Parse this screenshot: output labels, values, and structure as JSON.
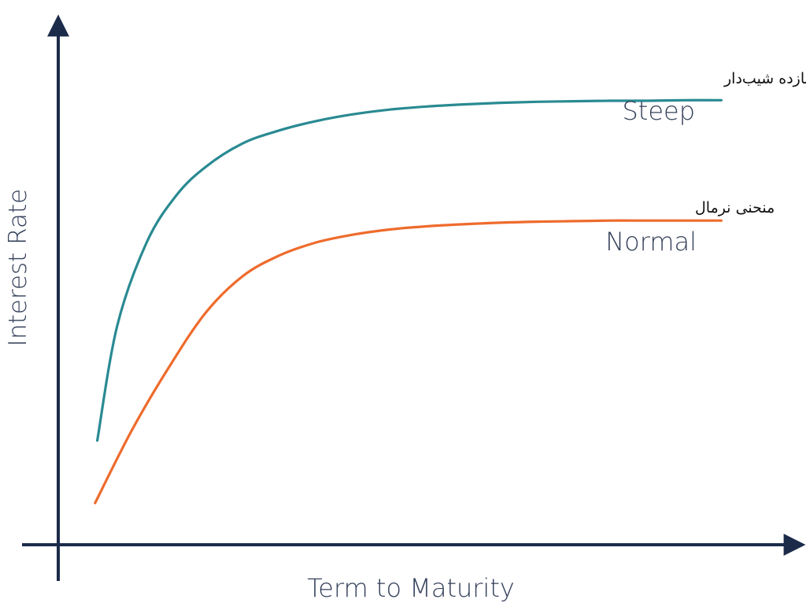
{
  "chart_data": {
    "type": "line",
    "title": "",
    "xlabel": "Term to Maturity",
    "ylabel": "Interest Rate",
    "xlim": [
      0,
      100
    ],
    "ylim": [
      0,
      100
    ],
    "grid": false,
    "series": [
      {
        "name": "Steep",
        "name_fa": "منحنی بازده شیب‌دار",
        "color": "#2a8a92",
        "x": [
          5.3,
          8,
          12,
          16,
          20,
          25,
          30,
          35,
          40,
          45,
          50,
          55,
          60,
          65,
          70,
          75,
          80,
          85,
          90
        ],
        "y": [
          20,
          42,
          58,
          67,
          72.5,
          77,
          79.5,
          81.3,
          82.6,
          83.5,
          84.1,
          84.5,
          84.8,
          85.0,
          85.1,
          85.2,
          85.2,
          85.3,
          85.3
        ]
      },
      {
        "name": "Normal",
        "name_fa": "منحنی نرمال",
        "color": "#ee6b2c",
        "x": [
          5,
          10,
          15,
          20,
          25,
          30,
          35,
          40,
          45,
          50,
          55,
          60,
          65,
          70,
          75,
          80,
          85,
          90
        ],
        "y": [
          8,
          22,
          34,
          44.5,
          51.5,
          55.5,
          58,
          59.5,
          60.5,
          61.1,
          61.5,
          61.8,
          62.0,
          62.1,
          62.2,
          62.2,
          62.2,
          62.2
        ]
      }
    ]
  }
}
